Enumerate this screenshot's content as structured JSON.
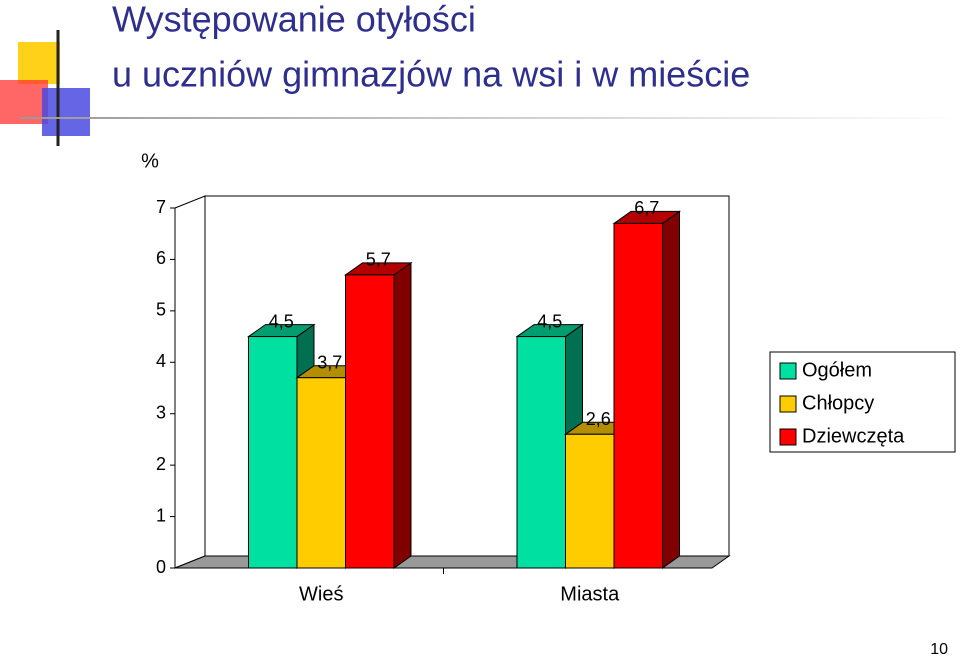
{
  "chart_data": {
    "type": "bar3d",
    "title": [
      "Występowanie otyłości",
      "u uczniów gimnazjów  na wsi i w mieście"
    ],
    "y_label": "%",
    "categories": [
      "Wieś",
      "Miasta"
    ],
    "series": [
      {
        "name": "Ogółem",
        "color": "#00E0A0",
        "values": [
          4.5,
          4.5
        ],
        "value_labels": [
          "4,5",
          "4,5"
        ]
      },
      {
        "name": "Chłopcy",
        "color": "#FFCC00",
        "values": [
          3.7,
          2.6
        ],
        "value_labels": [
          "3,7",
          "2,6"
        ]
      },
      {
        "name": "Dziewczęta",
        "color": "#FF0000",
        "values": [
          5.7,
          6.7
        ],
        "value_labels": [
          "5,7",
          "6,7"
        ]
      }
    ],
    "ylim": [
      0,
      7
    ],
    "yticks": [
      0,
      1,
      2,
      3,
      4,
      5,
      6,
      7
    ],
    "grid": false,
    "legend": "right"
  },
  "page_number": "10"
}
